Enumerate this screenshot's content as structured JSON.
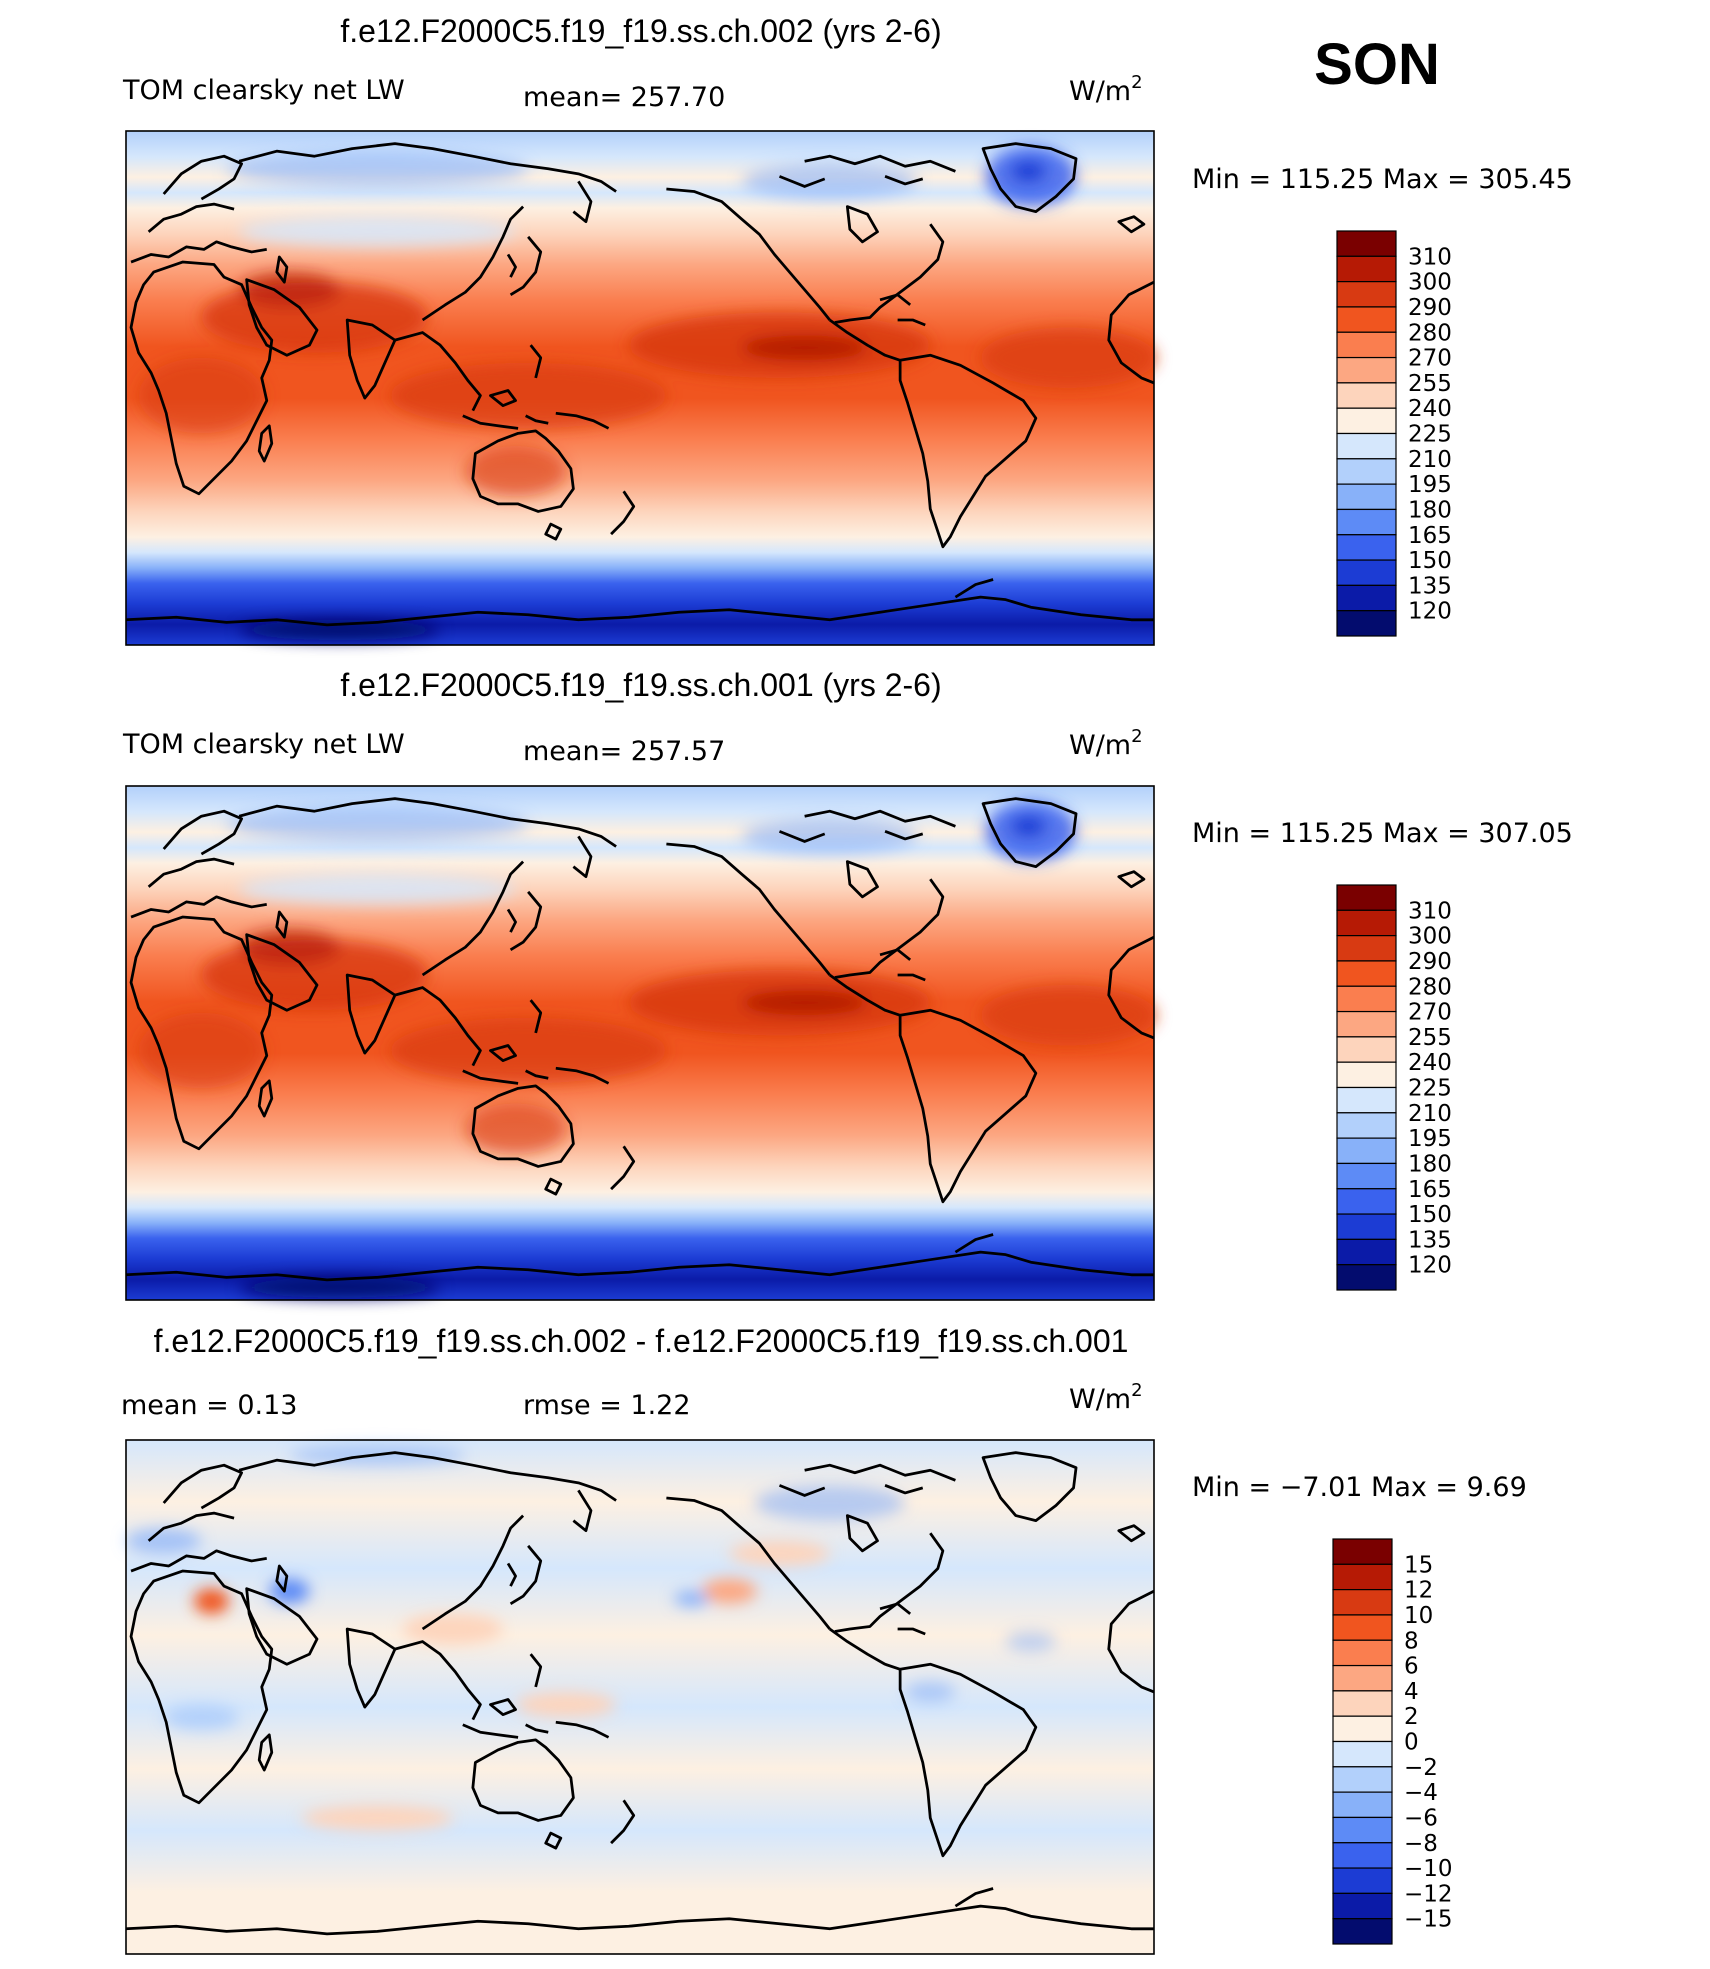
{
  "season": "SON",
  "panels": [
    {
      "id": "top",
      "title": "f.e12.F2000C5.f19_f19.ss.ch.002 (yrs 2-6)",
      "left_label": "TOM clearsky net LW",
      "center_label": "mean=  257.70",
      "units_base": "W/m",
      "units_sup": "2",
      "minmax": "Min  =  115.25  Max  =  305.45",
      "colorbar_levels": [
        "310",
        "300",
        "290",
        "280",
        "270",
        "255",
        "240",
        "225",
        "210",
        "195",
        "180",
        "165",
        "150",
        "135",
        "120"
      ]
    },
    {
      "id": "middle",
      "title": "f.e12.F2000C5.f19_f19.ss.ch.001 (yrs 2-6)",
      "left_label": "TOM clearsky net LW",
      "center_label": "mean=  257.57",
      "units_base": "W/m",
      "units_sup": "2",
      "minmax": "Min  =  115.25  Max  =  307.05",
      "colorbar_levels": [
        "310",
        "300",
        "290",
        "280",
        "270",
        "255",
        "240",
        "225",
        "210",
        "195",
        "180",
        "165",
        "150",
        "135",
        "120"
      ]
    },
    {
      "id": "bottom",
      "title": "f.e12.F2000C5.f19_f19.ss.ch.002 - f.e12.F2000C5.f19_f19.ss.ch.001",
      "left_label": "mean  =     0.13",
      "center_label": "rmse  =      1.22",
      "units_base": "W/m",
      "units_sup": "2",
      "minmax": "Min  =    −7.01  Max  =      9.69",
      "colorbar_levels": [
        "15",
        "12",
        "10",
        "8",
        "6",
        "4",
        "2",
        "0",
        "−2",
        "−4",
        "−6",
        "−8",
        "−10",
        "−12",
        "−15"
      ]
    }
  ],
  "colors": {
    "abs_palette": [
      "#7a0000",
      "#b61a05",
      "#d83a12",
      "#f0551f",
      "#fa7e4f",
      "#fca782",
      "#fdd4bc",
      "#fdf0e2",
      "#d5e7fc",
      "#b2d0fb",
      "#88b1f9",
      "#5d8bf6",
      "#3a62ee",
      "#1c3cd4",
      "#0b1ba8",
      "#030c6e"
    ],
    "diff_palette": [
      "#7a0000",
      "#b61a05",
      "#d83a12",
      "#f0551f",
      "#fa7e4f",
      "#fca782",
      "#fdd4bc",
      "#fdf0e2",
      "#d5e7fc",
      "#b2d0fb",
      "#88b1f9",
      "#5d8bf6",
      "#3a62ee",
      "#1c3cd4",
      "#0b1ba8",
      "#030c6e"
    ]
  }
}
